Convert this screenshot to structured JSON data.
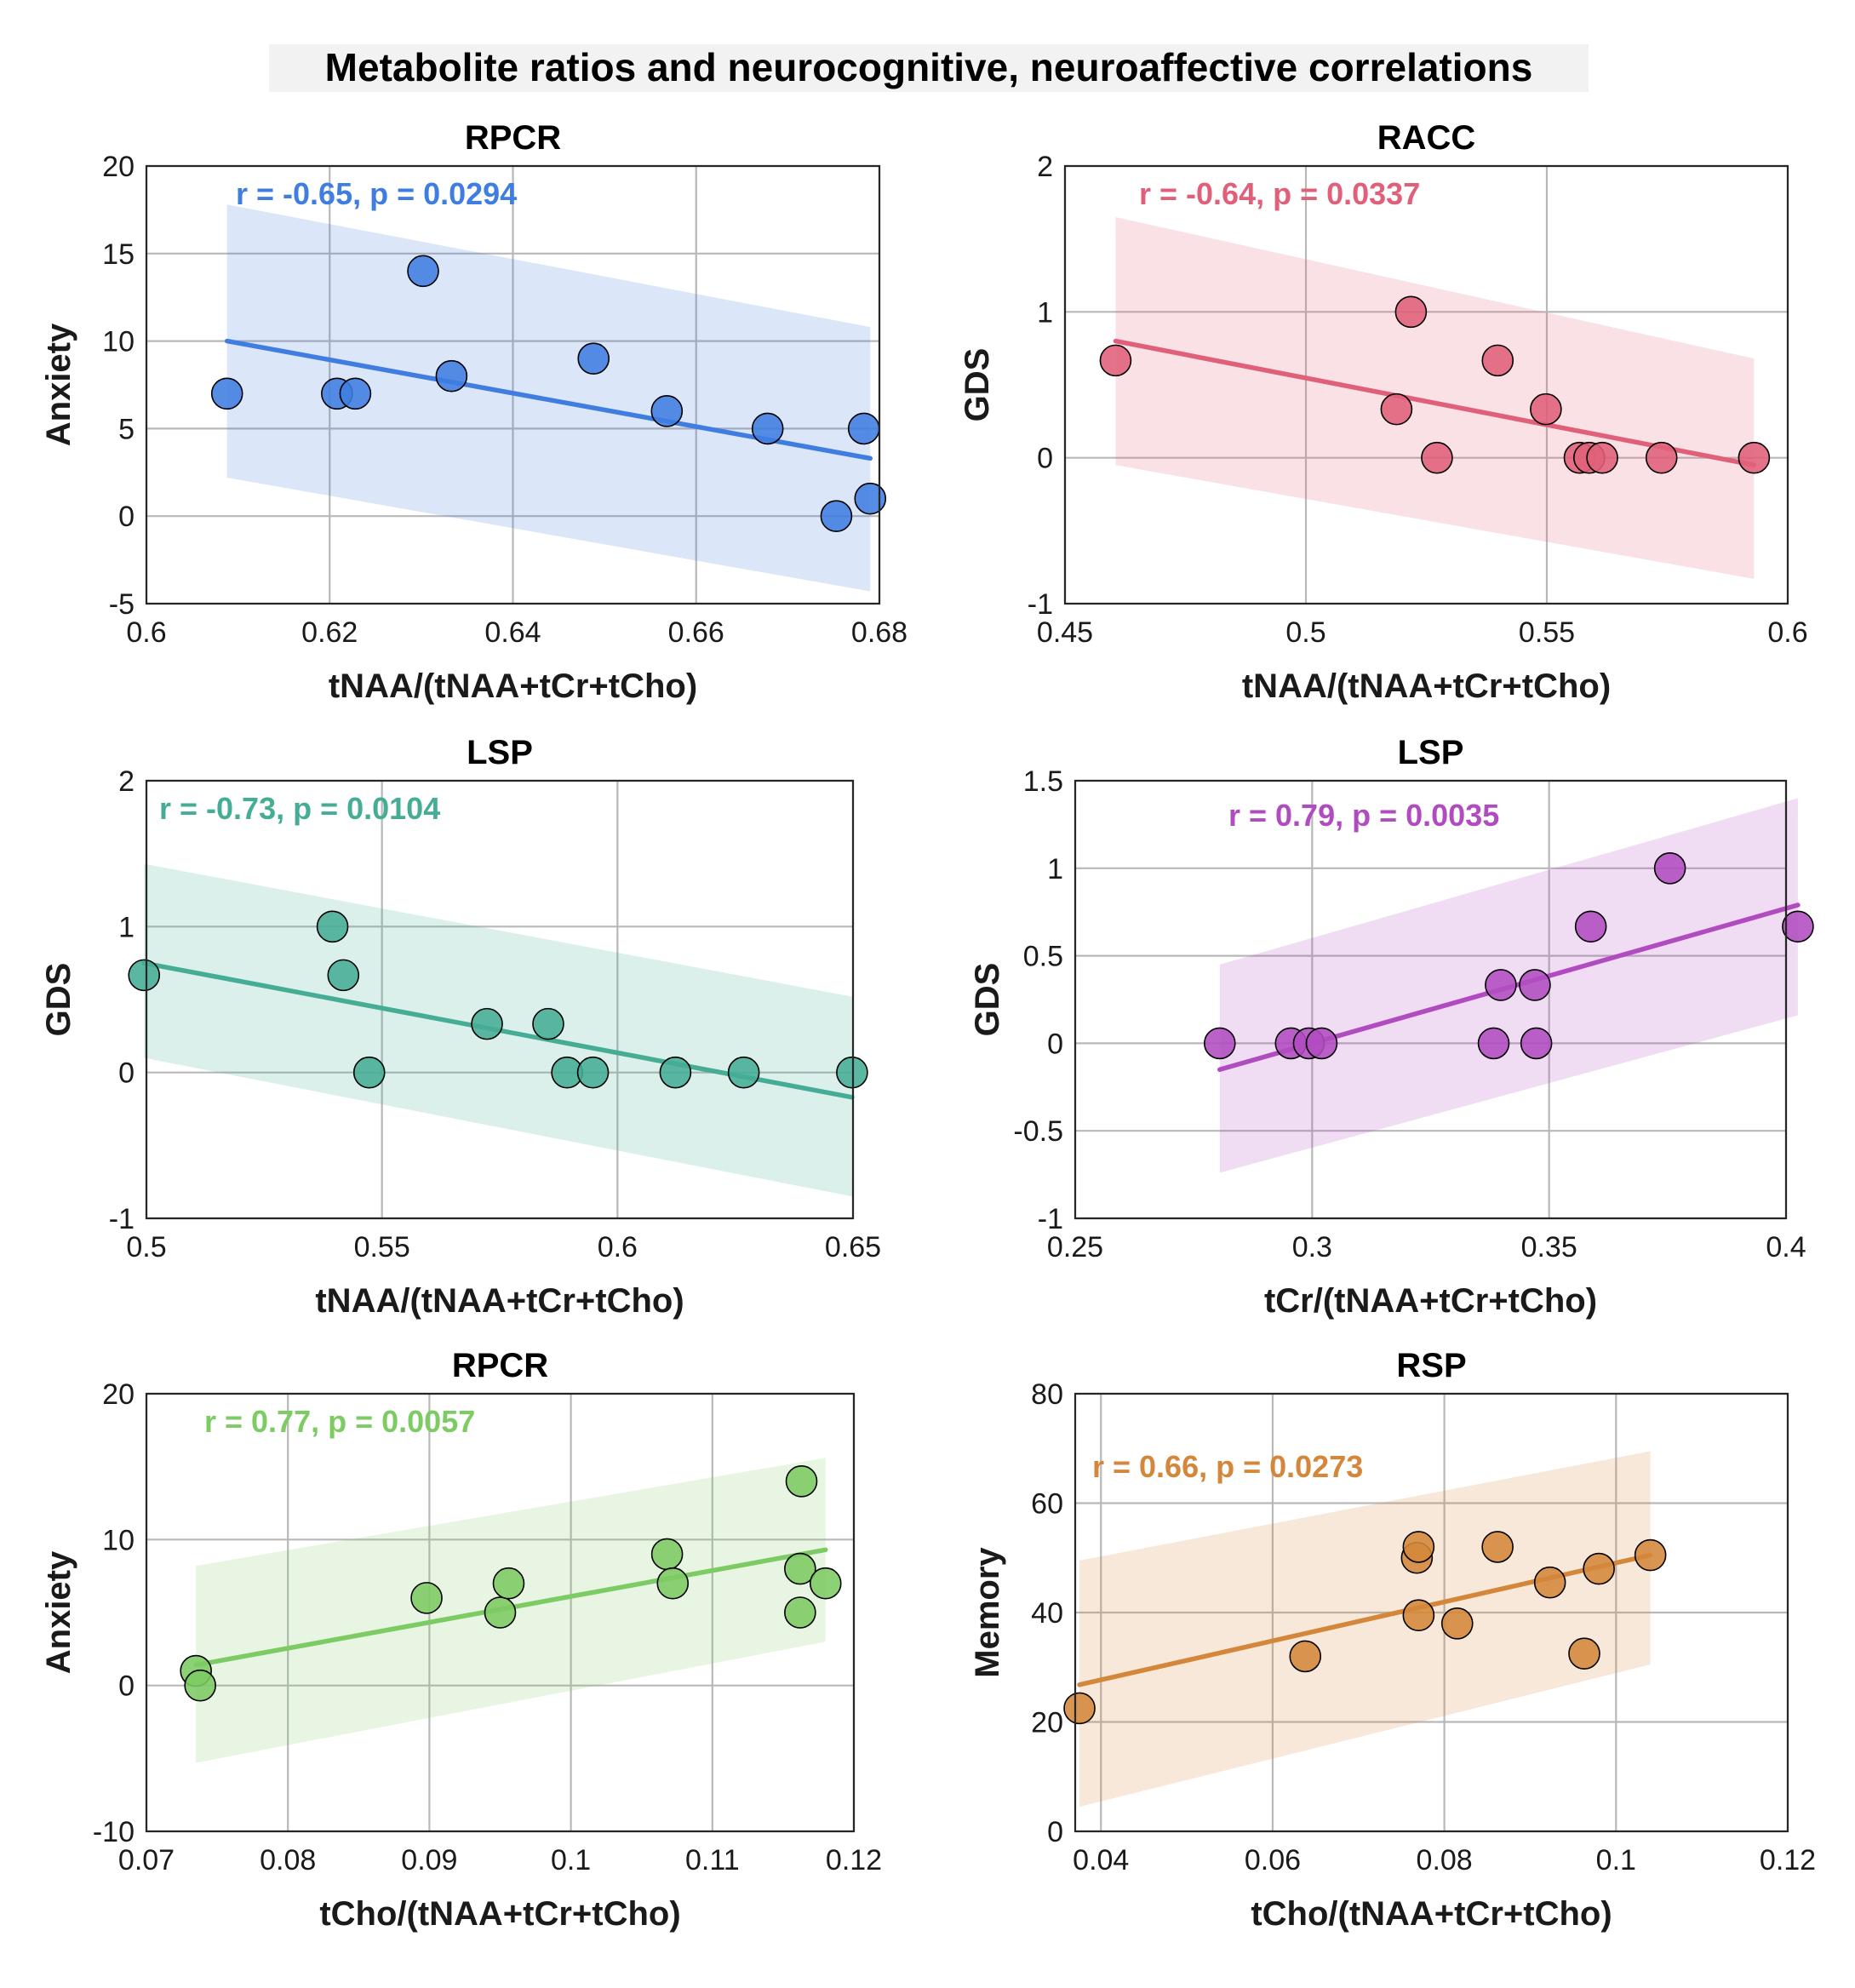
{
  "suptitle": "Metabolite ratios and neurocognitive, neuroaffective correlations",
  "chart_data": [
    {
      "type": "scatter",
      "title": "RPCR",
      "xlabel": "tNAA/(tNAA+tCr+tCho)",
      "ylabel": "Anxiety",
      "xlim": [
        0.6,
        0.68
      ],
      "ylim": [
        -5,
        20
      ],
      "xticks": [
        0.6,
        0.62,
        0.64,
        0.66,
        0.68
      ],
      "yticks": [
        -5,
        0,
        5,
        10,
        15,
        20
      ],
      "xtick_labels": [
        "0.6",
        "0.62",
        "0.64",
        "0.66",
        "0.68"
      ],
      "ytick_labels": [
        "-5",
        "0",
        "5",
        "10",
        "15",
        "20"
      ],
      "color": "#3f7de0",
      "annotation": "r = -0.65, p = 0.0294",
      "points": [
        {
          "x": 0.6088,
          "y": 7
        },
        {
          "x": 0.6208,
          "y": 7
        },
        {
          "x": 0.6228,
          "y": 7
        },
        {
          "x": 0.6302,
          "y": 14
        },
        {
          "x": 0.6333,
          "y": 8
        },
        {
          "x": 0.6488,
          "y": 9
        },
        {
          "x": 0.6568,
          "y": 6
        },
        {
          "x": 0.6678,
          "y": 5
        },
        {
          "x": 0.6753,
          "y": 0
        },
        {
          "x": 0.6783,
          "y": 5
        },
        {
          "x": 0.679,
          "y": 1
        }
      ],
      "fit": {
        "x": [
          0.6088,
          0.679
        ],
        "y": [
          10.0,
          3.3
        ]
      },
      "ci": {
        "x": [
          0.6088,
          0.679
        ],
        "upper": [
          17.8,
          10.8
        ],
        "lower": [
          2.2,
          -4.3
        ]
      }
    },
    {
      "type": "scatter",
      "title": "RACC",
      "xlabel": "tNAA/(tNAA+tCr+tCho)",
      "ylabel": "GDS",
      "xlim": [
        0.45,
        0.6
      ],
      "ylim": [
        -1,
        2
      ],
      "xticks": [
        0.45,
        0.5,
        0.55,
        0.6
      ],
      "yticks": [
        -1,
        0,
        1,
        2
      ],
      "xtick_labels": [
        "0.45",
        "0.5",
        "0.55",
        "0.6"
      ],
      "ytick_labels": [
        "-1",
        "0",
        "1",
        "2"
      ],
      "color": "#e0607a",
      "annotation": "r = -0.64, p = 0.0337",
      "points": [
        {
          "x": 0.4605,
          "y": 0.667
        },
        {
          "x": 0.5188,
          "y": 0.333
        },
        {
          "x": 0.5218,
          "y": 1
        },
        {
          "x": 0.5272,
          "y": 0
        },
        {
          "x": 0.5398,
          "y": 0.667
        },
        {
          "x": 0.5498,
          "y": 0.333
        },
        {
          "x": 0.5568,
          "y": 0
        },
        {
          "x": 0.5588,
          "y": 0
        },
        {
          "x": 0.5615,
          "y": 0
        },
        {
          "x": 0.5738,
          "y": 0
        },
        {
          "x": 0.593,
          "y": 0
        }
      ],
      "fit": {
        "x": [
          0.4605,
          0.593
        ],
        "y": [
          0.8,
          -0.05
        ]
      },
      "ci": {
        "x": [
          0.4605,
          0.593
        ],
        "upper": [
          1.65,
          0.68
        ],
        "lower": [
          -0.05,
          -0.83
        ]
      }
    },
    {
      "type": "scatter",
      "title": "LSP",
      "xlabel": "tNAA/(tNAA+tCr+tCho)",
      "ylabel": "GDS",
      "xlim": [
        0.5,
        0.65
      ],
      "ylim": [
        -1,
        2
      ],
      "xticks": [
        0.5,
        0.55,
        0.6,
        0.65
      ],
      "yticks": [
        -1,
        0,
        1,
        2
      ],
      "xtick_labels": [
        "0.5",
        "0.55",
        "0.6",
        "0.65"
      ],
      "ytick_labels": [
        "-1",
        "0",
        "1",
        "2"
      ],
      "color": "#45ad95",
      "annotation": "r = -0.73, p = 0.0104",
      "points": [
        {
          "x": 0.4995,
          "y": 0.667
        },
        {
          "x": 0.5395,
          "y": 1
        },
        {
          "x": 0.5418,
          "y": 0.667
        },
        {
          "x": 0.5473,
          "y": 0
        },
        {
          "x": 0.5723,
          "y": 0.333
        },
        {
          "x": 0.5853,
          "y": 0.333
        },
        {
          "x": 0.5893,
          "y": 0
        },
        {
          "x": 0.5948,
          "y": 0
        },
        {
          "x": 0.6123,
          "y": 0
        },
        {
          "x": 0.6268,
          "y": 0
        },
        {
          "x": 0.6498,
          "y": 0
        }
      ],
      "fit": {
        "x": [
          0.4995,
          0.6498
        ],
        "y": [
          0.75,
          -0.17
        ]
      },
      "ci": {
        "x": [
          0.4995,
          0.6498
        ],
        "upper": [
          1.43,
          0.52
        ],
        "lower": [
          0.1,
          -0.85
        ]
      }
    },
    {
      "type": "scatter",
      "title": "LSP",
      "xlabel": "tCr/(tNAA+tCr+tCho)",
      "ylabel": "GDS",
      "xlim": [
        0.25,
        0.4
      ],
      "ylim": [
        -1,
        1.5
      ],
      "xticks": [
        0.25,
        0.3,
        0.35,
        0.4
      ],
      "yticks": [
        -1,
        -0.5,
        0,
        0.5,
        1,
        1.5
      ],
      "xtick_labels": [
        "0.25",
        "0.3",
        "0.35",
        "0.4"
      ],
      "ytick_labels": [
        "-1",
        "-0.5",
        "0",
        "0.5",
        "1",
        "1.5"
      ],
      "color": "#b04cc0",
      "annotation": "r = 0.79, p = 0.0035",
      "points": [
        {
          "x": 0.2805,
          "y": 0
        },
        {
          "x": 0.2955,
          "y": 0
        },
        {
          "x": 0.2993,
          "y": 0
        },
        {
          "x": 0.302,
          "y": 0
        },
        {
          "x": 0.3383,
          "y": 0
        },
        {
          "x": 0.3398,
          "y": 0.333
        },
        {
          "x": 0.347,
          "y": 0.333
        },
        {
          "x": 0.3473,
          "y": 0
        },
        {
          "x": 0.3588,
          "y": 0.667
        },
        {
          "x": 0.3755,
          "y": 1
        },
        {
          "x": 0.4025,
          "y": 0.667
        }
      ],
      "fit": {
        "x": [
          0.2805,
          0.4025
        ],
        "y": [
          -0.15,
          0.79
        ]
      },
      "ci": {
        "x": [
          0.2805,
          0.4025
        ],
        "upper": [
          0.45,
          1.4
        ],
        "lower": [
          -0.74,
          0.16
        ]
      }
    },
    {
      "type": "scatter",
      "title": "RPCR",
      "xlabel": "tCho/(tNAA+tCr+tCho)",
      "ylabel": "Anxiety",
      "xlim": [
        0.07,
        0.12
      ],
      "ylim": [
        -10,
        20
      ],
      "xticks": [
        0.07,
        0.08,
        0.09,
        0.1,
        0.11,
        0.12
      ],
      "yticks": [
        -10,
        0,
        10,
        20
      ],
      "xtick_labels": [
        "0.07",
        "0.08",
        "0.09",
        "0.1",
        "0.11",
        "0.12"
      ],
      "ytick_labels": [
        "-10",
        "0",
        "10",
        "20"
      ],
      "color": "#7dcb63",
      "annotation": "r = 0.77, p = 0.0057",
      "points": [
        {
          "x": 0.0735,
          "y": 1
        },
        {
          "x": 0.0738,
          "y": 0
        },
        {
          "x": 0.0898,
          "y": 6
        },
        {
          "x": 0.095,
          "y": 5
        },
        {
          "x": 0.0956,
          "y": 7
        },
        {
          "x": 0.1068,
          "y": 9
        },
        {
          "x": 0.1072,
          "y": 7
        },
        {
          "x": 0.1162,
          "y": 8
        },
        {
          "x": 0.1162,
          "y": 5
        },
        {
          "x": 0.1163,
          "y": 14
        },
        {
          "x": 0.118,
          "y": 7
        }
      ],
      "fit": {
        "x": [
          0.0735,
          0.118
        ],
        "y": [
          1.4,
          9.3
        ]
      },
      "ci": {
        "x": [
          0.0735,
          0.118
        ],
        "upper": [
          8.2,
          15.6
        ],
        "lower": [
          -5.3,
          3.0
        ]
      }
    },
    {
      "type": "scatter",
      "title": "RSP",
      "xlabel": "tCho/(tNAA+tCr+tCho)",
      "ylabel": "Memory",
      "xlim": [
        0.037,
        0.12
      ],
      "ylim": [
        0,
        80
      ],
      "xticks": [
        0.04,
        0.06,
        0.08,
        0.1,
        0.12
      ],
      "yticks": [
        0,
        20,
        40,
        60,
        80
      ],
      "xtick_labels": [
        "0.04",
        "0.06",
        "0.08",
        "0.1",
        "0.12"
      ],
      "ytick_labels": [
        "0",
        "20",
        "40",
        "60",
        "80"
      ],
      "color": "#d4873a",
      "annotation": "r = 0.66, p = 0.0273",
      "points": [
        {
          "x": 0.0375,
          "y": 22.5
        },
        {
          "x": 0.0638,
          "y": 32
        },
        {
          "x": 0.0768,
          "y": 50
        },
        {
          "x": 0.077,
          "y": 52
        },
        {
          "x": 0.077,
          "y": 39.5
        },
        {
          "x": 0.0815,
          "y": 38
        },
        {
          "x": 0.0862,
          "y": 52
        },
        {
          "x": 0.0923,
          "y": 45.5
        },
        {
          "x": 0.0963,
          "y": 32.5
        },
        {
          "x": 0.098,
          "y": 48
        },
        {
          "x": 0.104,
          "y": 50.5
        }
      ],
      "fit": {
        "x": [
          0.0375,
          0.104
        ],
        "y": [
          26.8,
          50.5
        ]
      },
      "ci": {
        "x": [
          0.0375,
          0.104
        ],
        "upper": [
          49.5,
          69.5
        ],
        "lower": [
          4.5,
          30.5
        ]
      }
    }
  ]
}
